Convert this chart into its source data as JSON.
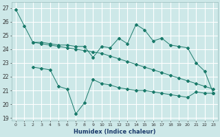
{
  "xlabel": "Humidex (Indice chaleur)",
  "bg_color": "#cde8e8",
  "grid_color": "#ffffff",
  "line_color": "#1a7a6a",
  "ylim": [
    18.8,
    27.4
  ],
  "xlim": [
    -0.5,
    23.5
  ],
  "yticks": [
    19,
    20,
    21,
    22,
    23,
    24,
    25,
    26,
    27
  ],
  "xticks": [
    0,
    1,
    2,
    3,
    4,
    5,
    6,
    7,
    8,
    9,
    10,
    11,
    12,
    13,
    14,
    15,
    16,
    17,
    18,
    19,
    20,
    21,
    22,
    23
  ],
  "line1_x": [
    0,
    1,
    2,
    3,
    4,
    5,
    6,
    7,
    8,
    9,
    10,
    11,
    12,
    13,
    14,
    15,
    16,
    17,
    18,
    19,
    20,
    21,
    22,
    23
  ],
  "line1_y": [
    26.9,
    25.7,
    24.5,
    24.5,
    24.4,
    24.3,
    24.3,
    24.2,
    24.2,
    23.4,
    24.2,
    24.1,
    24.8,
    24.4,
    25.8,
    25.4,
    24.6,
    24.8,
    24.3,
    24.2,
    24.1,
    23.0,
    22.4,
    20.8
  ],
  "line2_x": [
    2,
    3,
    4,
    5,
    6,
    7,
    8,
    9,
    10,
    11,
    12,
    13,
    14,
    15,
    16,
    17,
    18,
    19,
    20,
    21,
    22,
    23
  ],
  "line2_y": [
    24.5,
    24.4,
    24.3,
    24.2,
    24.1,
    24.0,
    23.9,
    23.8,
    23.7,
    23.5,
    23.3,
    23.1,
    22.9,
    22.7,
    22.5,
    22.3,
    22.1,
    21.9,
    21.7,
    21.5,
    21.3,
    21.1
  ],
  "line3_x": [
    2,
    3,
    4,
    5,
    6,
    7,
    8,
    9,
    10,
    11,
    12,
    13,
    14,
    15,
    16,
    17,
    18,
    19,
    20,
    21,
    22,
    23
  ],
  "line3_y": [
    22.7,
    22.6,
    22.5,
    21.3,
    21.1,
    19.3,
    20.1,
    21.8,
    21.5,
    21.4,
    21.2,
    21.1,
    21.0,
    21.0,
    20.9,
    20.8,
    20.7,
    20.6,
    20.5,
    20.9,
    20.8,
    20.8
  ]
}
